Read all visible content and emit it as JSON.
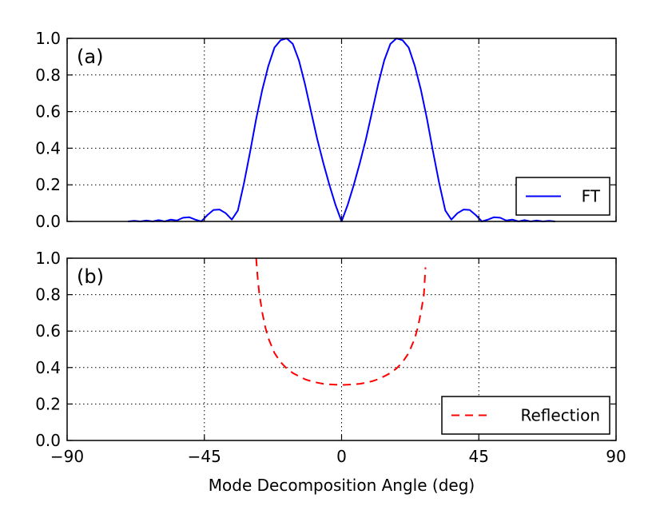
{
  "chart_data": [
    {
      "type": "line",
      "panel_label": "(a)",
      "xlim": [
        -90,
        90
      ],
      "ylim": [
        0,
        1.0
      ],
      "x_ticks": [
        -90,
        -45,
        0,
        45,
        90
      ],
      "y_ticks": [
        0.0,
        0.2,
        0.4,
        0.6,
        0.8,
        1.0
      ],
      "y_tick_labels": [
        "0.0",
        "0.2",
        "0.4",
        "0.6",
        "0.8",
        "1.0"
      ],
      "show_x_tick_labels": false,
      "grid": true,
      "legend": {
        "placement": "lower-right",
        "entries": [
          "FT"
        ]
      },
      "series": [
        {
          "name": "FT",
          "color": "#0000ff",
          "style": "solid",
          "x": [
            -70,
            -68,
            -66,
            -64,
            -62,
            -60,
            -58,
            -56,
            -54,
            -52,
            -50,
            -48,
            -46,
            -44,
            -42,
            -40,
            -38,
            -36,
            -34,
            -32,
            -30,
            -28,
            -26,
            -24,
            -22,
            -20,
            -18,
            -16,
            -14,
            -12,
            -10,
            -8,
            -6,
            -4,
            -2,
            0,
            2,
            4,
            6,
            8,
            10,
            12,
            14,
            16,
            18,
            20,
            22,
            24,
            26,
            28,
            30,
            32,
            34,
            36,
            38,
            40,
            42,
            44,
            46,
            48,
            50,
            52,
            54,
            56,
            58,
            60,
            62,
            64,
            66,
            68,
            70
          ],
          "values": [
            0.0,
            0.003,
            0.0,
            0.005,
            0.0,
            0.007,
            0.0,
            0.01,
            0.005,
            0.02,
            0.023,
            0.01,
            0.0,
            0.035,
            0.063,
            0.065,
            0.045,
            0.01,
            0.06,
            0.21,
            0.38,
            0.56,
            0.72,
            0.85,
            0.95,
            0.99,
            1.0,
            0.97,
            0.88,
            0.75,
            0.6,
            0.45,
            0.32,
            0.2,
            0.09,
            0.0,
            0.09,
            0.2,
            0.32,
            0.45,
            0.6,
            0.75,
            0.88,
            0.97,
            1.0,
            0.99,
            0.95,
            0.85,
            0.72,
            0.56,
            0.38,
            0.21,
            0.06,
            0.01,
            0.045,
            0.065,
            0.063,
            0.035,
            0.0,
            0.01,
            0.023,
            0.02,
            0.005,
            0.01,
            0.0,
            0.007,
            0.0,
            0.005,
            0.0,
            0.003,
            0.0
          ]
        }
      ]
    },
    {
      "type": "line",
      "panel_label": "(b)",
      "xlim": [
        -90,
        90
      ],
      "ylim": [
        0,
        1.0
      ],
      "x_ticks": [
        -90,
        -45,
        0,
        45,
        90
      ],
      "x_tick_labels": [
        "−90",
        "−45",
        "0",
        "45",
        "90"
      ],
      "y_ticks": [
        0.0,
        0.2,
        0.4,
        0.6,
        0.8,
        1.0
      ],
      "y_tick_labels": [
        "0.0",
        "0.2",
        "0.4",
        "0.6",
        "0.8",
        "1.0"
      ],
      "xlabel": "Mode Decomposition Angle (deg)",
      "grid": true,
      "legend": {
        "placement": "lower-right",
        "entries": [
          "Reflection"
        ]
      },
      "series": [
        {
          "name": "Reflection",
          "color": "#ff0000",
          "style": "dashed",
          "x": [
            -28,
            -27.5,
            -27,
            -26,
            -25,
            -24,
            -22,
            -20,
            -18,
            -16,
            -14,
            -12,
            -10,
            -8,
            -6,
            -4,
            -2,
            0,
            2,
            4,
            6,
            8,
            10,
            12,
            14,
            16,
            18,
            20,
            22,
            24,
            25,
            26,
            27,
            27.5
          ],
          "values": [
            1.0,
            0.89,
            0.81,
            0.7,
            0.62,
            0.56,
            0.48,
            0.43,
            0.395,
            0.37,
            0.352,
            0.336,
            0.325,
            0.317,
            0.311,
            0.308,
            0.306,
            0.305,
            0.306,
            0.308,
            0.311,
            0.317,
            0.325,
            0.336,
            0.352,
            0.37,
            0.395,
            0.43,
            0.48,
            0.56,
            0.62,
            0.7,
            0.8,
            0.95
          ]
        }
      ]
    }
  ]
}
